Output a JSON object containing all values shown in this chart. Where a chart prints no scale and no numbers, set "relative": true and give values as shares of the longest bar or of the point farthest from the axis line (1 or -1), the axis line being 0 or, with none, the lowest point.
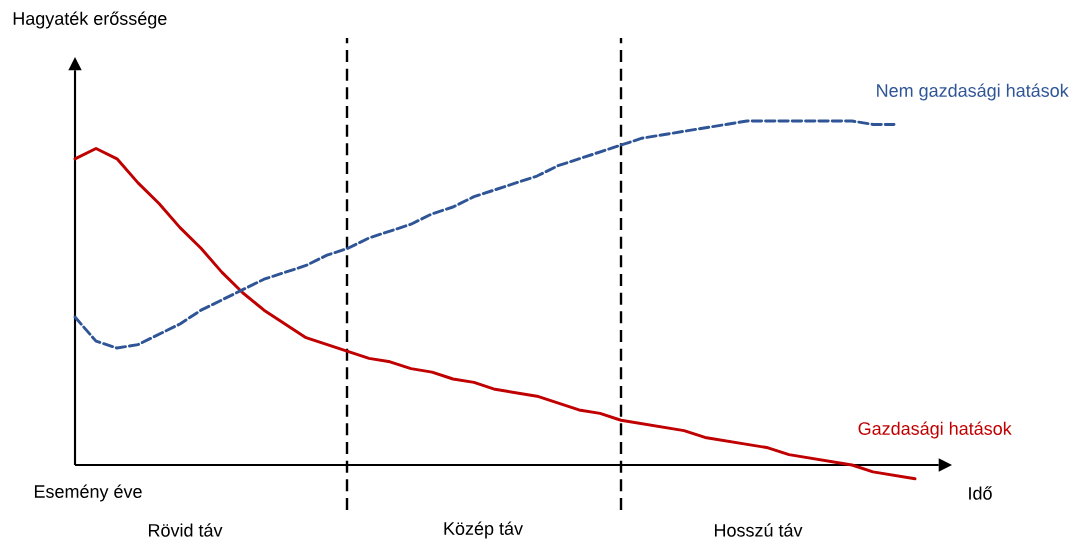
{
  "chart_data": {
    "type": "line",
    "relative": true,
    "xlabel": "Idő",
    "categories": [
      null,
      null,
      null,
      null,
      null,
      null,
      null,
      null,
      null,
      null,
      null,
      null,
      null,
      null,
      null,
      null,
      null,
      null,
      null,
      null,
      null,
      null,
      null,
      null,
      null,
      null,
      null,
      null,
      null,
      null,
      null,
      null,
      null,
      null,
      null,
      null,
      null,
      null,
      null,
      null,
      null
    ],
    "series": [
      {
        "name": "Gazdasági hatások",
        "color": "#c00000",
        "line_style": "solid",
        "values": [
          0.89,
          0.92,
          0.89,
          0.82,
          0.76,
          0.69,
          0.63,
          0.56,
          0.5,
          0.45,
          0.41,
          0.37,
          0.35,
          0.33,
          0.31,
          0.3,
          0.28,
          0.27,
          0.25,
          0.24,
          0.22,
          0.21,
          0.2,
          0.18,
          0.16,
          0.15,
          0.13,
          0.12,
          0.11,
          0.1,
          0.08,
          0.07,
          0.06,
          0.05,
          0.03,
          0.02,
          0.01,
          0.0,
          -0.02,
          -0.03,
          -0.04
        ]
      },
      {
        "name": "Nem gazdasági hatások",
        "color": "#2f5597",
        "line_style": "dashed",
        "values": [
          0.43,
          0.36,
          0.34,
          0.35,
          0.38,
          0.41,
          0.45,
          0.48,
          0.51,
          0.54,
          0.56,
          0.58,
          0.61,
          0.63,
          0.66,
          0.68,
          0.7,
          0.73,
          0.75,
          0.78,
          0.8,
          0.82,
          0.84,
          0.87,
          0.89,
          0.91,
          0.93,
          0.95,
          0.96,
          0.97,
          0.98,
          0.99,
          1.0,
          1.0,
          1.0,
          1.0,
          1.0,
          1.0,
          0.99,
          0.99,
          null
        ]
      }
    ],
    "annotations": [
      "Hagyaték erőssége",
      "Esemény éve",
      "Rövid táv",
      "Közép táv",
      "Hosszú táv"
    ],
    "marker": "none",
    "legend": false,
    "grid": false
  }
}
